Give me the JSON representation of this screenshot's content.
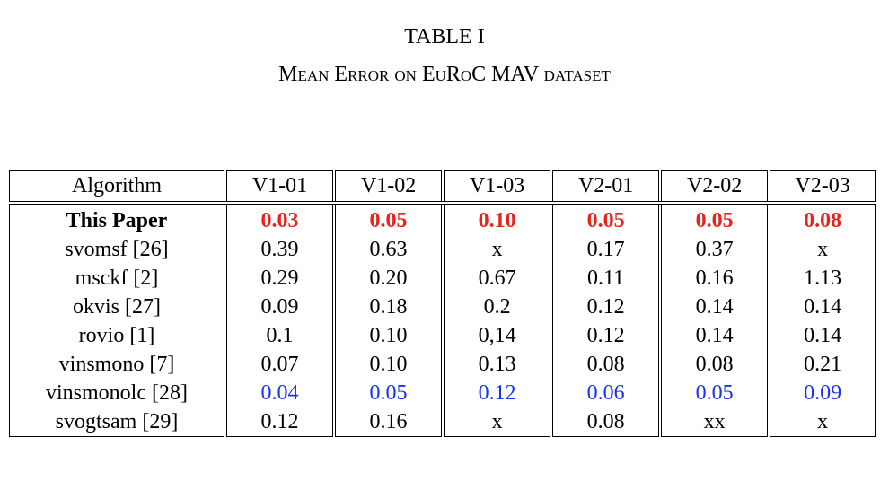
{
  "title": "TABLE I",
  "caption": "Mean Error on EuRoC MAV dataset",
  "table": {
    "header": [
      "Algorithm",
      "V1-01",
      "V1-02",
      "V1-03",
      "V2-01",
      "V2-02",
      "V2-03"
    ],
    "rows": [
      {
        "cells": [
          "This Paper",
          "0.03",
          "0.05",
          "0.10",
          "0.05",
          "0.05",
          "0.08"
        ],
        "bold": true,
        "color": "#e8231d"
      },
      {
        "cells": [
          "svomsf [26]",
          "0.39",
          "0.63",
          "x",
          "0.17",
          "0.37",
          "x"
        ]
      },
      {
        "cells": [
          "msckf [2]",
          "0.29",
          "0.20",
          "0.67",
          "0.11",
          "0.16",
          "1.13"
        ]
      },
      {
        "cells": [
          "okvis [27]",
          "0.09",
          "0.18",
          "0.2",
          "0.12",
          "0.14",
          "0.14"
        ]
      },
      {
        "cells": [
          "rovio [1]",
          "0.1",
          "0.10",
          "0,14",
          "0.12",
          "0.14",
          "0.14"
        ]
      },
      {
        "cells": [
          "vinsmono [7]",
          "0.07",
          "0.10",
          "0.13",
          "0.08",
          "0.08",
          "0.21"
        ]
      },
      {
        "cells": [
          "vinsmonolc [28]",
          "0.04",
          "0.05",
          "0.12",
          "0.06",
          "0.05",
          "0.09"
        ],
        "color": "#1a33f0"
      },
      {
        "cells": [
          "svogtsam [29]",
          "0.12",
          "0.16",
          "x",
          "0.08",
          "xx",
          "x"
        ]
      }
    ]
  }
}
